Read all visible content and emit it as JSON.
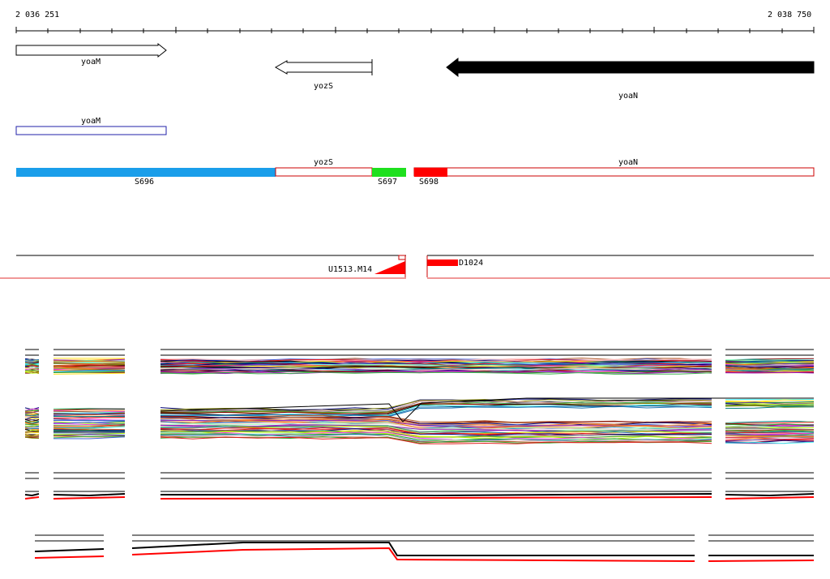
{
  "coordinates": {
    "start": "2 036 251",
    "end": "2 038 750"
  },
  "genes": [
    {
      "name": "yoaM",
      "strand": "+",
      "style": "outline"
    },
    {
      "name": "yozS",
      "strand": "-",
      "style": "outline"
    },
    {
      "name": "yoaN",
      "strand": "-",
      "style": "filled"
    }
  ],
  "annotation_track": [
    {
      "name": "yoaM"
    }
  ],
  "segments": [
    {
      "label": "S696",
      "color": "#1a9eea"
    },
    {
      "label": "S697",
      "color": "#1ee01e"
    },
    {
      "label": "S698",
      "color": "#ff0000"
    }
  ],
  "segment_gene_labels": [
    "yozS",
    "yoaN"
  ],
  "features": [
    {
      "label": "U1513.M14"
    },
    {
      "label": "D1024"
    }
  ],
  "colors": {
    "tick": "#000000",
    "blue_outline": "#2222aa",
    "red_outline": "#cc0000",
    "track_line": "#000000",
    "separator": "#e03030"
  }
}
